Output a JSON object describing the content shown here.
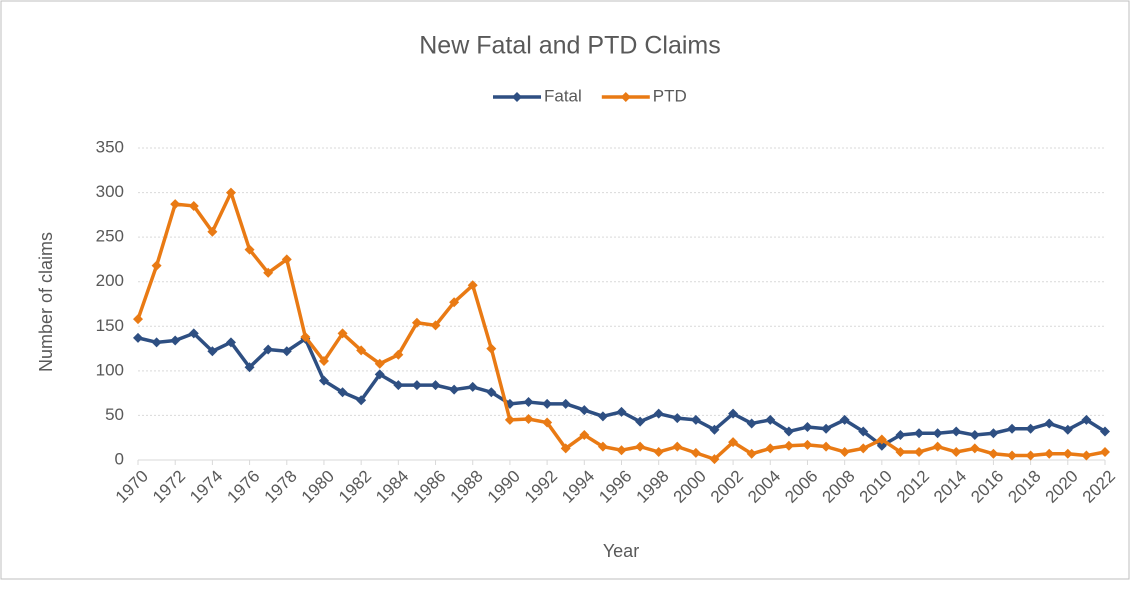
{
  "chart_data": {
    "type": "line",
    "title": "New Fatal and PTD Claims",
    "x_label": "Year",
    "y_label": "Number of claims",
    "x": [
      1970,
      1971,
      1972,
      1973,
      1974,
      1975,
      1976,
      1977,
      1978,
      1979,
      1980,
      1981,
      1982,
      1983,
      1984,
      1985,
      1986,
      1987,
      1988,
      1989,
      1990,
      1991,
      1992,
      1993,
      1994,
      1995,
      1996,
      1997,
      1998,
      1999,
      2000,
      2001,
      2002,
      2003,
      2004,
      2005,
      2006,
      2007,
      2008,
      2009,
      2010,
      2011,
      2012,
      2013,
      2014,
      2015,
      2016,
      2017,
      2018,
      2019,
      2020,
      2021,
      2022
    ],
    "series": [
      {
        "name": "Fatal",
        "color": "#2e4f82",
        "values": [
          137,
          132,
          134,
          142,
          122,
          132,
          104,
          124,
          122,
          136,
          89,
          76,
          67,
          96,
          84,
          84,
          84,
          79,
          82,
          76,
          63,
          65,
          63,
          63,
          56,
          49,
          54,
          43,
          52,
          47,
          45,
          34,
          52,
          41,
          45,
          32,
          37,
          35,
          45,
          32,
          16,
          28,
          30,
          30,
          32,
          28,
          30,
          35,
          35,
          41,
          34,
          45,
          32
        ]
      },
      {
        "name": "PTD",
        "color": "#e97a14",
        "values": [
          158,
          218,
          287,
          285,
          256,
          300,
          236,
          210,
          225,
          138,
          111,
          142,
          123,
          108,
          118,
          154,
          151,
          177,
          196,
          125,
          45,
          46,
          42,
          13,
          28,
          15,
          11,
          15,
          9,
          15,
          8,
          1,
          20,
          7,
          13,
          16,
          17,
          15,
          9,
          13,
          23,
          9,
          9,
          15,
          9,
          13,
          7,
          5,
          5,
          7,
          7,
          5,
          9
        ]
      }
    ],
    "xlim": [
      1970,
      2022
    ],
    "xticks": [
      1970,
      1972,
      1974,
      1976,
      1978,
      1980,
      1982,
      1984,
      1986,
      1988,
      1990,
      1992,
      1994,
      1996,
      1998,
      2000,
      2002,
      2004,
      2006,
      2008,
      2010,
      2012,
      2014,
      2016,
      2018,
      2020,
      2022
    ],
    "ylim": [
      0,
      350
    ],
    "yticks": [
      0,
      50,
      100,
      150,
      200,
      250,
      300,
      350
    ],
    "grid": true,
    "legend": "top"
  }
}
